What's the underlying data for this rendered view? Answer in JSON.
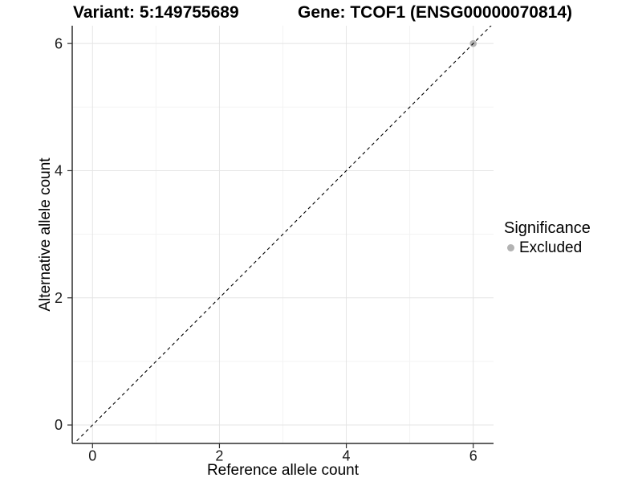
{
  "chart_data": {
    "type": "scatter",
    "title_left": "Variant: 5:149755689",
    "title_right": "Gene: TCOF1 (ENSG00000070814)",
    "xlabel": "Reference allele count",
    "ylabel": "Alternative allele count",
    "xlim": [
      -0.32,
      6.32
    ],
    "ylim": [
      -0.29,
      6.28
    ],
    "x_major_ticks": [
      0,
      2,
      4,
      6
    ],
    "x_minor_ticks": [
      1,
      3,
      5
    ],
    "y_major_ticks": [
      0,
      2,
      4,
      6
    ],
    "y_minor_ticks": [
      1,
      3,
      5
    ],
    "grid": "major and minor gridlines on white panel",
    "series": [
      {
        "name": "Excluded",
        "color": "#b3b3b3",
        "points": [
          {
            "x": 6,
            "y": 6
          }
        ]
      }
    ],
    "reference_line": {
      "slope": 1,
      "intercept": 0,
      "style": "dashed",
      "color": "#000000"
    },
    "legend": {
      "title": "Significance",
      "position": "right",
      "items": [
        {
          "label": "Excluded",
          "color": "#b3b3b3"
        }
      ]
    },
    "style": {
      "background": "#ffffff",
      "grid_major_color": "#e4e4e4",
      "grid_minor_color": "#f3f3f3",
      "axis_line_color": "#2f2f2f",
      "tick_label_color": "#1a1a1a",
      "point_radius": 4.3
    }
  }
}
